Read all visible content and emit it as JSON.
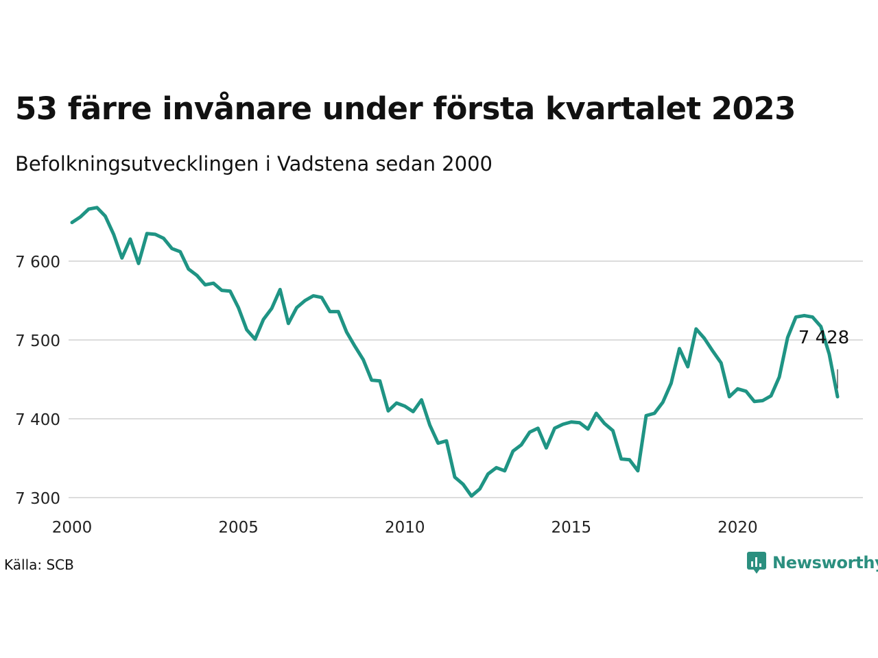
{
  "title": "53 färre invånare under första kvartalet 2023",
  "subtitle": "Befolkningsutvecklingen i Vadstena sedan 2000",
  "source": "Källa: SCB",
  "brand": {
    "name": "Newsworthy",
    "logo_icon": "newsworthy-chart-bubble-icon",
    "color": "#2b8f7f"
  },
  "chart_data": {
    "type": "line",
    "title": "53 färre invånare under första kvartalet 2023",
    "xlabel": "",
    "ylabel": "",
    "xlim": [
      2000,
      2023.5
    ],
    "ylim": [
      7290,
      7680
    ],
    "x_ticks": [
      2000,
      2005,
      2010,
      2015,
      2020
    ],
    "x_tick_labels": [
      "2000",
      "2005",
      "2010",
      "2015",
      "2020"
    ],
    "y_ticks": [
      7300,
      7400,
      7500,
      7600
    ],
    "y_tick_labels": [
      "7 300",
      "7 400",
      "7 500",
      "7 600"
    ],
    "grid": "horizontal",
    "line_color": "#1f9484",
    "annotation": {
      "label": "7 428",
      "x": 2023.0,
      "y": 7428
    },
    "series": [
      {
        "x": [
          2000.0,
          2000.25,
          2000.5,
          2000.75,
          2001.0,
          2001.25,
          2001.5,
          2001.75,
          2002.0,
          2002.25,
          2002.5,
          2002.75,
          2003.0,
          2003.25,
          2003.5,
          2003.75,
          2004.0,
          2004.25,
          2004.5,
          2004.75,
          2005.0,
          2005.25,
          2005.5,
          2005.75,
          2006.0,
          2006.25,
          2006.5,
          2006.75,
          2007.0,
          2007.25,
          2007.5,
          2007.75,
          2008.0,
          2008.25,
          2008.5,
          2008.75,
          2009.0,
          2009.25,
          2009.5,
          2009.75,
          2010.0,
          2010.25,
          2010.5,
          2010.75,
          2011.0,
          2011.25,
          2011.5,
          2011.75,
          2012.0,
          2012.25,
          2012.5,
          2012.75,
          2013.0,
          2013.25,
          2013.5,
          2013.75,
          2014.0,
          2014.25,
          2014.5,
          2014.75,
          2015.0,
          2015.25,
          2015.5,
          2015.75,
          2016.0,
          2016.25,
          2016.5,
          2016.75,
          2017.0,
          2017.25,
          2017.5,
          2017.75,
          2018.0,
          2018.25,
          2018.5,
          2018.75,
          2019.0,
          2019.25,
          2019.5,
          2019.75,
          2020.0,
          2020.25,
          2020.5,
          2020.75,
          2021.0,
          2021.25,
          2021.5,
          2021.75,
          2022.0,
          2022.25,
          2022.5,
          2022.75,
          2023.0
        ],
        "values": [
          7649,
          7656,
          7666,
          7668,
          7657,
          7634,
          7604,
          7628,
          7597,
          7635,
          7634,
          7629,
          7616,
          7612,
          7590,
          7582,
          7570,
          7572,
          7563,
          7562,
          7541,
          7513,
          7501,
          7526,
          7540,
          7564,
          7521,
          7541,
          7550,
          7556,
          7554,
          7536,
          7536,
          7510,
          7492,
          7475,
          7449,
          7448,
          7410,
          7420,
          7416,
          7409,
          7424,
          7392,
          7369,
          7372,
          7326,
          7317,
          7302,
          7311,
          7330,
          7338,
          7334,
          7359,
          7367,
          7383,
          7388,
          7363,
          7388,
          7393,
          7396,
          7395,
          7387,
          7407,
          7394,
          7385,
          7349,
          7348,
          7334,
          7404,
          7407,
          7421,
          7445,
          7489,
          7466,
          7514,
          7502,
          7486,
          7471,
          7428,
          7438,
          7435,
          7422,
          7423,
          7429,
          7453,
          7503,
          7529,
          7531,
          7529,
          7517,
          7482,
          7428
        ]
      }
    ]
  }
}
